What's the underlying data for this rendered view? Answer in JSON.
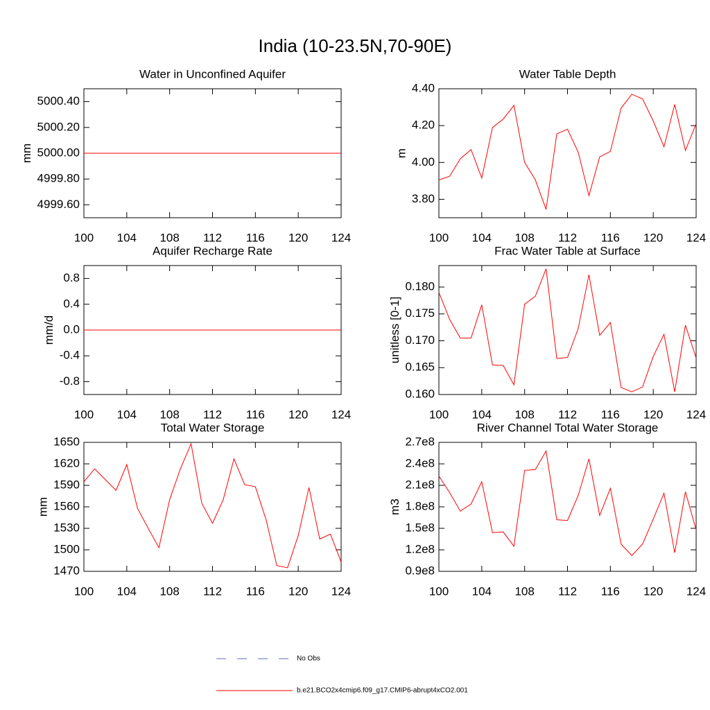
{
  "title": "India (10-23.5N,70-90E)",
  "legend": [
    {
      "name": "No Obs",
      "color": "#5b6bb5",
      "dashed": true
    },
    {
      "name": "b.e21.BCO2x4cmip6.f09_g17.CMIP6-abrupt4xCO2.001",
      "color": "#ff0000",
      "dashed": false
    }
  ],
  "chart_data": [
    {
      "type": "line",
      "title": "Water in Unconfined Aquifer",
      "ylabel": "mm",
      "x": [
        100,
        101,
        102,
        103,
        104,
        105,
        106,
        107,
        108,
        109,
        110,
        111,
        112,
        113,
        114,
        115,
        116,
        117,
        118,
        119,
        120,
        121,
        122,
        123,
        124
      ],
      "series": [
        {
          "color": "#ff0000",
          "values": [
            5000,
            5000,
            5000,
            5000,
            5000,
            5000,
            5000,
            5000,
            5000,
            5000,
            5000,
            5000,
            5000,
            5000,
            5000,
            5000,
            5000,
            5000,
            5000,
            5000,
            5000,
            5000,
            5000,
            5000,
            5000
          ]
        }
      ],
      "xlim": [
        100,
        124
      ],
      "xticks": [
        100,
        104,
        108,
        112,
        116,
        120,
        124
      ],
      "ylim": [
        4999.5,
        5000.5
      ],
      "yticks": [
        {
          "value": 4999.6,
          "label": "4999.60"
        },
        {
          "value": 4999.8,
          "label": "4999.80"
        },
        {
          "value": 5000,
          "label": "5000.00"
        },
        {
          "value": 5000.2,
          "label": "5000.20"
        },
        {
          "value": 5000.4,
          "label": "5000.40"
        }
      ]
    },
    {
      "type": "line",
      "title": "Water Table Depth",
      "ylabel": "m",
      "x": [
        100,
        101,
        102,
        103,
        104,
        105,
        106,
        107,
        108,
        109,
        110,
        111,
        112,
        113,
        114,
        115,
        116,
        117,
        118,
        119,
        120,
        121,
        122,
        123,
        124
      ],
      "series": [
        {
          "color": "#ff0000",
          "values": [
            3.905,
            3.925,
            4.02,
            4.07,
            3.915,
            4.19,
            4.235,
            4.31,
            4.0,
            3.905,
            3.745,
            4.155,
            4.18,
            4.055,
            3.82,
            4.03,
            4.06,
            4.295,
            4.37,
            4.345,
            4.225,
            4.085,
            4.315,
            4.065,
            4.21
          ]
        }
      ],
      "xlim": [
        100,
        124
      ],
      "xticks": [
        100,
        104,
        108,
        112,
        116,
        120,
        124
      ],
      "ylim": [
        3.7,
        4.4
      ],
      "yticks": [
        {
          "value": 3.8,
          "label": "3.80"
        },
        {
          "value": 4.0,
          "label": "4.00"
        },
        {
          "value": 4.2,
          "label": "4.20"
        },
        {
          "value": 4.4,
          "label": "4.40"
        }
      ]
    },
    {
      "type": "line",
      "title": "Aquifer Recharge Rate",
      "ylabel": "mm/d",
      "x": [
        100,
        101,
        102,
        103,
        104,
        105,
        106,
        107,
        108,
        109,
        110,
        111,
        112,
        113,
        114,
        115,
        116,
        117,
        118,
        119,
        120,
        121,
        122,
        123,
        124
      ],
      "series": [
        {
          "color": "#ff0000",
          "values": [
            0,
            0,
            0,
            0,
            0,
            0,
            0,
            0,
            0,
            0,
            0,
            0,
            0,
            0,
            0,
            0,
            0,
            0,
            0,
            0,
            0,
            0,
            0,
            0,
            0
          ]
        }
      ],
      "xlim": [
        100,
        124
      ],
      "xticks": [
        100,
        104,
        108,
        112,
        116,
        120,
        124
      ],
      "ylim": [
        -1,
        1
      ],
      "yticks": [
        -0.8,
        -0.4,
        {
          "value": 0,
          "label": "0.0"
        },
        0.4,
        0.8
      ]
    },
    {
      "type": "line",
      "title": "Frac Water Table at Surface",
      "ylabel": "unitless [0-1]",
      "x": [
        100,
        101,
        102,
        103,
        104,
        105,
        106,
        107,
        108,
        109,
        110,
        111,
        112,
        113,
        114,
        115,
        116,
        117,
        118,
        119,
        120,
        121,
        122,
        123,
        124
      ],
      "series": [
        {
          "color": "#ff0000",
          "values": [
            0.179,
            0.174,
            0.1705,
            0.1705,
            0.1767,
            0.1655,
            0.1654,
            0.1618,
            0.1768,
            0.1783,
            0.1834,
            0.1667,
            0.1669,
            0.1723,
            0.1823,
            0.171,
            0.1734,
            0.1613,
            0.1605,
            0.1614,
            0.1671,
            0.1712,
            0.1605,
            0.1729,
            0.1668
          ]
        }
      ],
      "xlim": [
        100,
        124
      ],
      "xticks": [
        100,
        104,
        108,
        112,
        116,
        120,
        124
      ],
      "ylim": [
        0.16,
        0.184
      ],
      "yticks": [
        {
          "value": 0.16,
          "label": "0.160"
        },
        0.165,
        {
          "value": 0.17,
          "label": "0.170"
        },
        0.175,
        {
          "value": 0.18,
          "label": "0.180"
        }
      ]
    },
    {
      "type": "line",
      "title": "Total Water Storage",
      "ylabel": "mm",
      "x": [
        100,
        101,
        102,
        103,
        104,
        105,
        106,
        107,
        108,
        109,
        110,
        111,
        112,
        113,
        114,
        115,
        116,
        117,
        118,
        119,
        120,
        121,
        122,
        123,
        124
      ],
      "series": [
        {
          "color": "#ff0000",
          "values": [
            1595,
            1613,
            1598,
            1583,
            1619,
            1558,
            1530,
            1503,
            1570,
            1613,
            1648,
            1565,
            1537,
            1570,
            1627,
            1591,
            1588,
            1542,
            1478,
            1475,
            1520,
            1587,
            1515,
            1522,
            1483
          ]
        }
      ],
      "xlim": [
        100,
        124
      ],
      "xticks": [
        100,
        104,
        108,
        112,
        116,
        120,
        124
      ],
      "ylim": [
        1470,
        1650
      ],
      "yticks": [
        1470,
        1500,
        1530,
        1560,
        1590,
        1620,
        1650
      ]
    },
    {
      "type": "line",
      "title": "River Channel Total Water Storage",
      "ylabel": "m3",
      "x": [
        100,
        101,
        102,
        103,
        104,
        105,
        106,
        107,
        108,
        109,
        110,
        111,
        112,
        113,
        114,
        115,
        116,
        117,
        118,
        119,
        120,
        121,
        122,
        123,
        124
      ],
      "series": [
        {
          "color": "#ff0000",
          "values": [
            223000000,
            200000000,
            174000000,
            184000000,
            215000000,
            144000000,
            145000000,
            125000000,
            231000000,
            232000000,
            258000000,
            162000000,
            161000000,
            196000000,
            247000000,
            168000000,
            206000000,
            128000000,
            112000000,
            128000000,
            163000000,
            199000000,
            116000000,
            201000000,
            148000000
          ]
        }
      ],
      "xlim": [
        100,
        124
      ],
      "xticks": [
        100,
        104,
        108,
        112,
        116,
        120,
        124
      ],
      "ylim": [
        90000000,
        270000000
      ],
      "yticks": [
        {
          "value": 90000000,
          "label": "0.9e8"
        },
        {
          "value": 120000000,
          "label": "1.2e8"
        },
        {
          "value": 150000000,
          "label": "1.5e8"
        },
        {
          "value": 180000000,
          "label": "1.8e8"
        },
        {
          "value": 210000000,
          "label": "2.1e8"
        },
        {
          "value": 240000000,
          "label": "2.4e8"
        },
        {
          "value": 270000000,
          "label": "2.7e8"
        }
      ]
    }
  ]
}
